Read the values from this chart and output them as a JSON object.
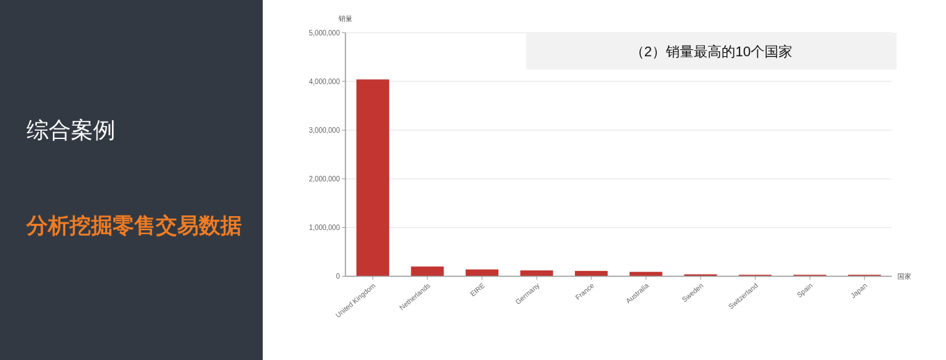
{
  "chart_data": {
    "type": "bar",
    "title": "（2）销量最高的10个国家",
    "xlabel": "国家",
    "ylabel": "销量",
    "categories": [
      "United Kingdom",
      "Netherlands",
      "EIRE",
      "Germany",
      "France",
      "Australia",
      "Sweden",
      "Switzerland",
      "Spain",
      "Japan"
    ],
    "values": [
      4040000,
      200000,
      140000,
      120000,
      110000,
      90000,
      40000,
      30000,
      30000,
      30000
    ],
    "color": "#c23531",
    "ylim": [
      0,
      5000000
    ],
    "yticks": [
      0,
      {
        "value": 1000000,
        "label": "1,000,000"
      },
      {
        "value": 2000000,
        "label": "2,000,000"
      },
      {
        "value": 3000000,
        "label": "3,000,000"
      },
      {
        "value": 4000000,
        "label": "4,000,000"
      },
      {
        "value": 5000000,
        "label": "5,000,000"
      }
    ],
    "grid": "y",
    "annotations": [
      "综合案例",
      "分析挖掘零售交易数据"
    ]
  }
}
